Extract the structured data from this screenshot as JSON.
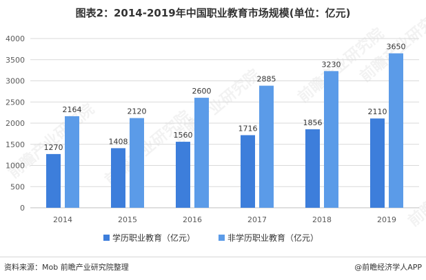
{
  "page": {
    "title": "图表2：2014-2019年中国职业教育市场规模(单位：亿元)",
    "source": "资料来源：Mob 前瞻产业研究院整理",
    "brand": "@前瞻经济学人APP",
    "watermark": "前瞻产业研究院"
  },
  "colors": {
    "series1": "#3D7EDB",
    "series2": "#5B9BE8",
    "grid": "#d9d9d9",
    "text": "#595959"
  },
  "chart_data": {
    "type": "bar",
    "title": "图表2：2014-2019年中国职业教育市场规模(单位：亿元)",
    "categories": [
      "2014",
      "2015",
      "2016",
      "2017",
      "2018",
      "2019"
    ],
    "series": [
      {
        "name": "学历职业教育（亿元）",
        "values": [
          1270,
          1408,
          1560,
          1716,
          1856,
          2110
        ]
      },
      {
        "name": "非学历职业教育（亿元）",
        "values": [
          2164,
          2120,
          2600,
          2885,
          3230,
          3650
        ]
      }
    ],
    "ylim": [
      0,
      4000
    ],
    "yticks": [
      0,
      500,
      1000,
      1500,
      2000,
      2500,
      3000,
      3500,
      4000
    ],
    "xlabel": "",
    "ylabel": "",
    "grid": true,
    "legend": "bottom"
  }
}
